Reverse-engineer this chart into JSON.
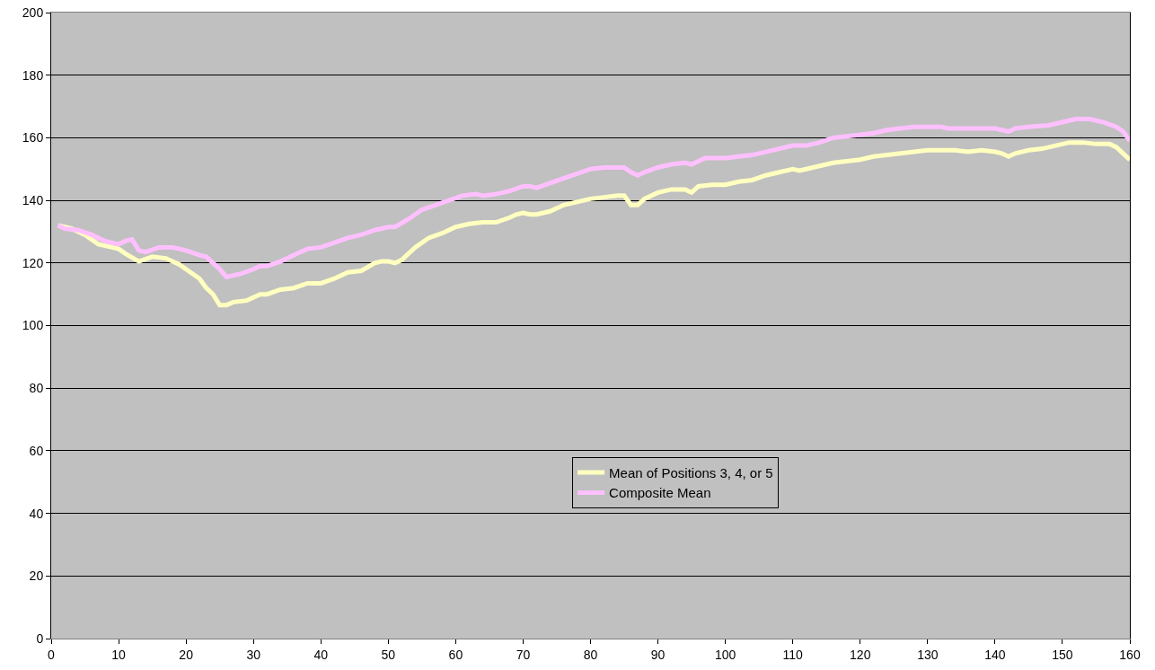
{
  "chart_data": {
    "type": "line",
    "xlim": [
      0,
      160
    ],
    "ylim": [
      0,
      200
    ],
    "xticks": [
      0,
      10,
      20,
      30,
      40,
      50,
      60,
      70,
      80,
      90,
      100,
      110,
      120,
      130,
      140,
      150,
      160
    ],
    "yticks": [
      0,
      20,
      40,
      60,
      80,
      100,
      120,
      140,
      160,
      180,
      200
    ],
    "grid": "y",
    "legend": "bottom",
    "marker": "none",
    "line_style": "solid",
    "series": [
      {
        "name": "Mean of Positions 3, 4, or 5",
        "color": "#ffffc0",
        "x": [
          1,
          3,
          5,
          7,
          9,
          10,
          11,
          13,
          15,
          17,
          19,
          21,
          22,
          23,
          24,
          25,
          26,
          27,
          29,
          31,
          32,
          34,
          36,
          38,
          40,
          42,
          44,
          46,
          48,
          49,
          50,
          51,
          52,
          54,
          56,
          58,
          60,
          62,
          64,
          66,
          68,
          69,
          70,
          71,
          72,
          74,
          76,
          78,
          80,
          82,
          84,
          85,
          86,
          87,
          88,
          90,
          92,
          94,
          95,
          96,
          98,
          100,
          102,
          104,
          106,
          108,
          110,
          111,
          112,
          114,
          116,
          118,
          120,
          122,
          124,
          126,
          128,
          130,
          132,
          134,
          136,
          138,
          140,
          141,
          142,
          143,
          145,
          147,
          149,
          151,
          153,
          155,
          157,
          158,
          159,
          160
        ],
        "values": [
          132,
          131,
          129,
          126,
          125,
          124.5,
          123,
          120.5,
          122,
          121.5,
          119.5,
          116.5,
          115,
          112,
          110,
          106.5,
          106.5,
          107.5,
          108,
          110,
          110,
          111.5,
          112,
          113.5,
          113.5,
          115,
          117,
          117.5,
          120,
          120.5,
          120.5,
          120,
          121,
          125,
          128,
          129.5,
          131.5,
          132.5,
          133,
          133,
          134.5,
          135.5,
          136,
          135.5,
          135.5,
          136.5,
          138.5,
          139.5,
          140.5,
          141,
          141.5,
          141.5,
          138.5,
          138.5,
          140.5,
          142.5,
          143.5,
          143.5,
          142.5,
          144.5,
          145,
          145,
          146,
          146.5,
          148,
          149,
          150,
          149.5,
          150,
          151,
          152,
          152.5,
          153,
          154,
          154.5,
          155,
          155.5,
          156,
          156,
          156,
          155.5,
          156,
          155.5,
          155,
          154,
          155,
          156,
          156.5,
          157.5,
          158.5,
          158.5,
          158,
          158,
          157,
          155,
          153
        ]
      },
      {
        "name": "Composite Mean",
        "color": "#ffc0ff",
        "x": [
          1,
          2,
          4,
          6,
          8,
          10,
          11,
          12,
          13,
          14,
          16,
          18,
          20,
          22,
          23,
          24,
          25,
          26,
          28,
          30,
          31,
          32,
          34,
          36,
          38,
          40,
          42,
          44,
          46,
          48,
          50,
          51,
          53,
          55,
          57,
          59,
          61,
          63,
          64,
          66,
          68,
          70,
          71,
          72,
          74,
          76,
          78,
          80,
          82,
          84,
          85,
          86,
          87,
          88,
          90,
          92,
          94,
          95,
          96,
          97,
          100,
          104,
          108,
          110,
          111,
          112,
          114,
          116,
          118,
          120,
          122,
          124,
          126,
          128,
          130,
          132,
          133,
          136,
          138,
          140,
          141,
          142,
          143,
          145,
          148,
          150,
          152,
          154,
          156,
          158,
          159,
          160
        ],
        "values": [
          132,
          131,
          130.5,
          129,
          127,
          126,
          127,
          127.5,
          124,
          123.5,
          125,
          125,
          124,
          122.5,
          122,
          120,
          118,
          115.5,
          116.5,
          118,
          119,
          119,
          120.5,
          122.5,
          124.5,
          125,
          126.5,
          128,
          129,
          130.5,
          131.5,
          131.5,
          134,
          137,
          138.5,
          140,
          141.5,
          142,
          141.5,
          142,
          143,
          144.5,
          144.5,
          144,
          145.5,
          147,
          148.5,
          150,
          150.5,
          150.5,
          150.5,
          149,
          148,
          149,
          150.5,
          151.5,
          152,
          151.5,
          152.5,
          153.5,
          153.5,
          154.5,
          156.5,
          157.5,
          157.5,
          157.5,
          158.5,
          160,
          160.5,
          161,
          161.5,
          162.5,
          163,
          163.5,
          163.5,
          163.5,
          163,
          163,
          163,
          163,
          162.5,
          162,
          163,
          163.5,
          164,
          165,
          166,
          166,
          165,
          163.5,
          162,
          159
        ]
      }
    ]
  }
}
